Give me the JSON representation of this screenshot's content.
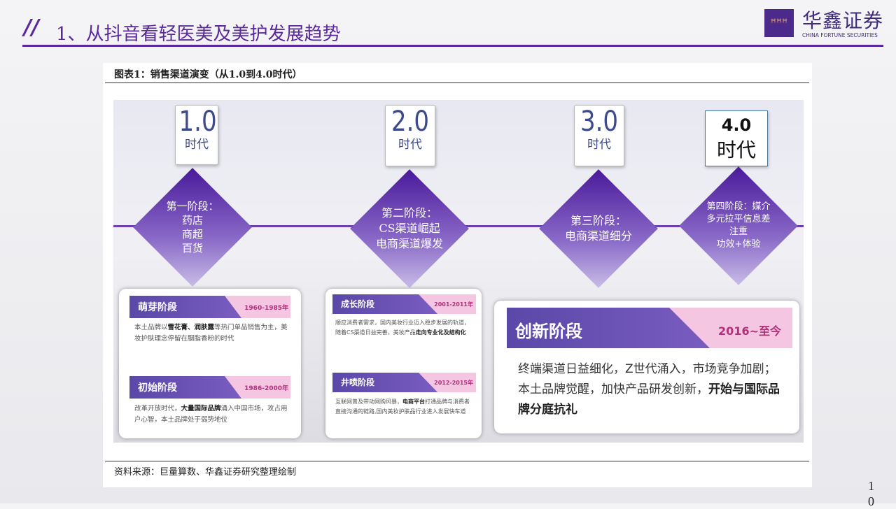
{
  "header": {
    "title": "1、从抖音看轻医美及美护发展趋势",
    "logo_cn": "华鑫证券",
    "logo_en": "CHINA FORTUNE SECURITIES",
    "accent": "#5a2a9a"
  },
  "figure": {
    "caption": "图表1：销售渠道演变（从1.0到4.0时代）",
    "source": "资料来源：巨量算数、华鑫证券研究整理绘制"
  },
  "eras": [
    {
      "num": "1.0",
      "label": "时代"
    },
    {
      "num": "2.0",
      "label": "时代"
    },
    {
      "num": "3.0",
      "label": "时代"
    },
    {
      "num": "4.0",
      "label": "时代"
    }
  ],
  "stages": [
    {
      "l1": "第一阶段：",
      "l2": "药店",
      "l3": "商超",
      "l4": "百货"
    },
    {
      "l1": "第二阶段：",
      "l2": "CS渠道崛起",
      "l3": "电商渠道爆发"
    },
    {
      "l1": "第三阶段：",
      "l2": "电商渠道细分"
    },
    {
      "l1": "第四阶段：媒介",
      "l2": "多元拉平信息差",
      "l3": "注重",
      "l4": "功效+体验"
    }
  ],
  "cards": [
    {
      "name": "萌芽阶段",
      "years": "1960-1985年",
      "pre": "本土品牌以",
      "bold": "雪花膏、润肤露",
      "post": "等热门单品销售为主，美妆护肤理念停留在胭脂香粉的时代"
    },
    {
      "name": "初始阶段",
      "years": "1986-2000年",
      "pre": "改革开放时代，",
      "bold": "大量国际品牌",
      "post": "涌入中国市场，攻占用户心智，本土品牌处于弱势地位"
    },
    {
      "name": "成长阶段",
      "years": "2001-2011年",
      "pre": "顺应消费者需求，国内美妆行业迈入稳步发展的轨道，随着CS渠道日益完善，美妆产品",
      "bold": "走向专业化及结构化",
      "post": ""
    },
    {
      "name": "井喷阶段",
      "years": "2012-2015年",
      "pre": "互联网普及带动网购风暴，",
      "bold": "电商平台",
      "post": "打通品牌与消费者直接沟通的链路,国内美妆护肤品行业进入发展快车道"
    },
    {
      "name": "创新阶段",
      "years": "2016~至今",
      "pre": "终端渠道日益细化，Z世代涌入，市场竞争加剧；本土品牌觉醒，加快产品研发创新，",
      "bold": "开始与国际品牌分庭抗礼",
      "post": ""
    }
  ],
  "page_number": "10"
}
